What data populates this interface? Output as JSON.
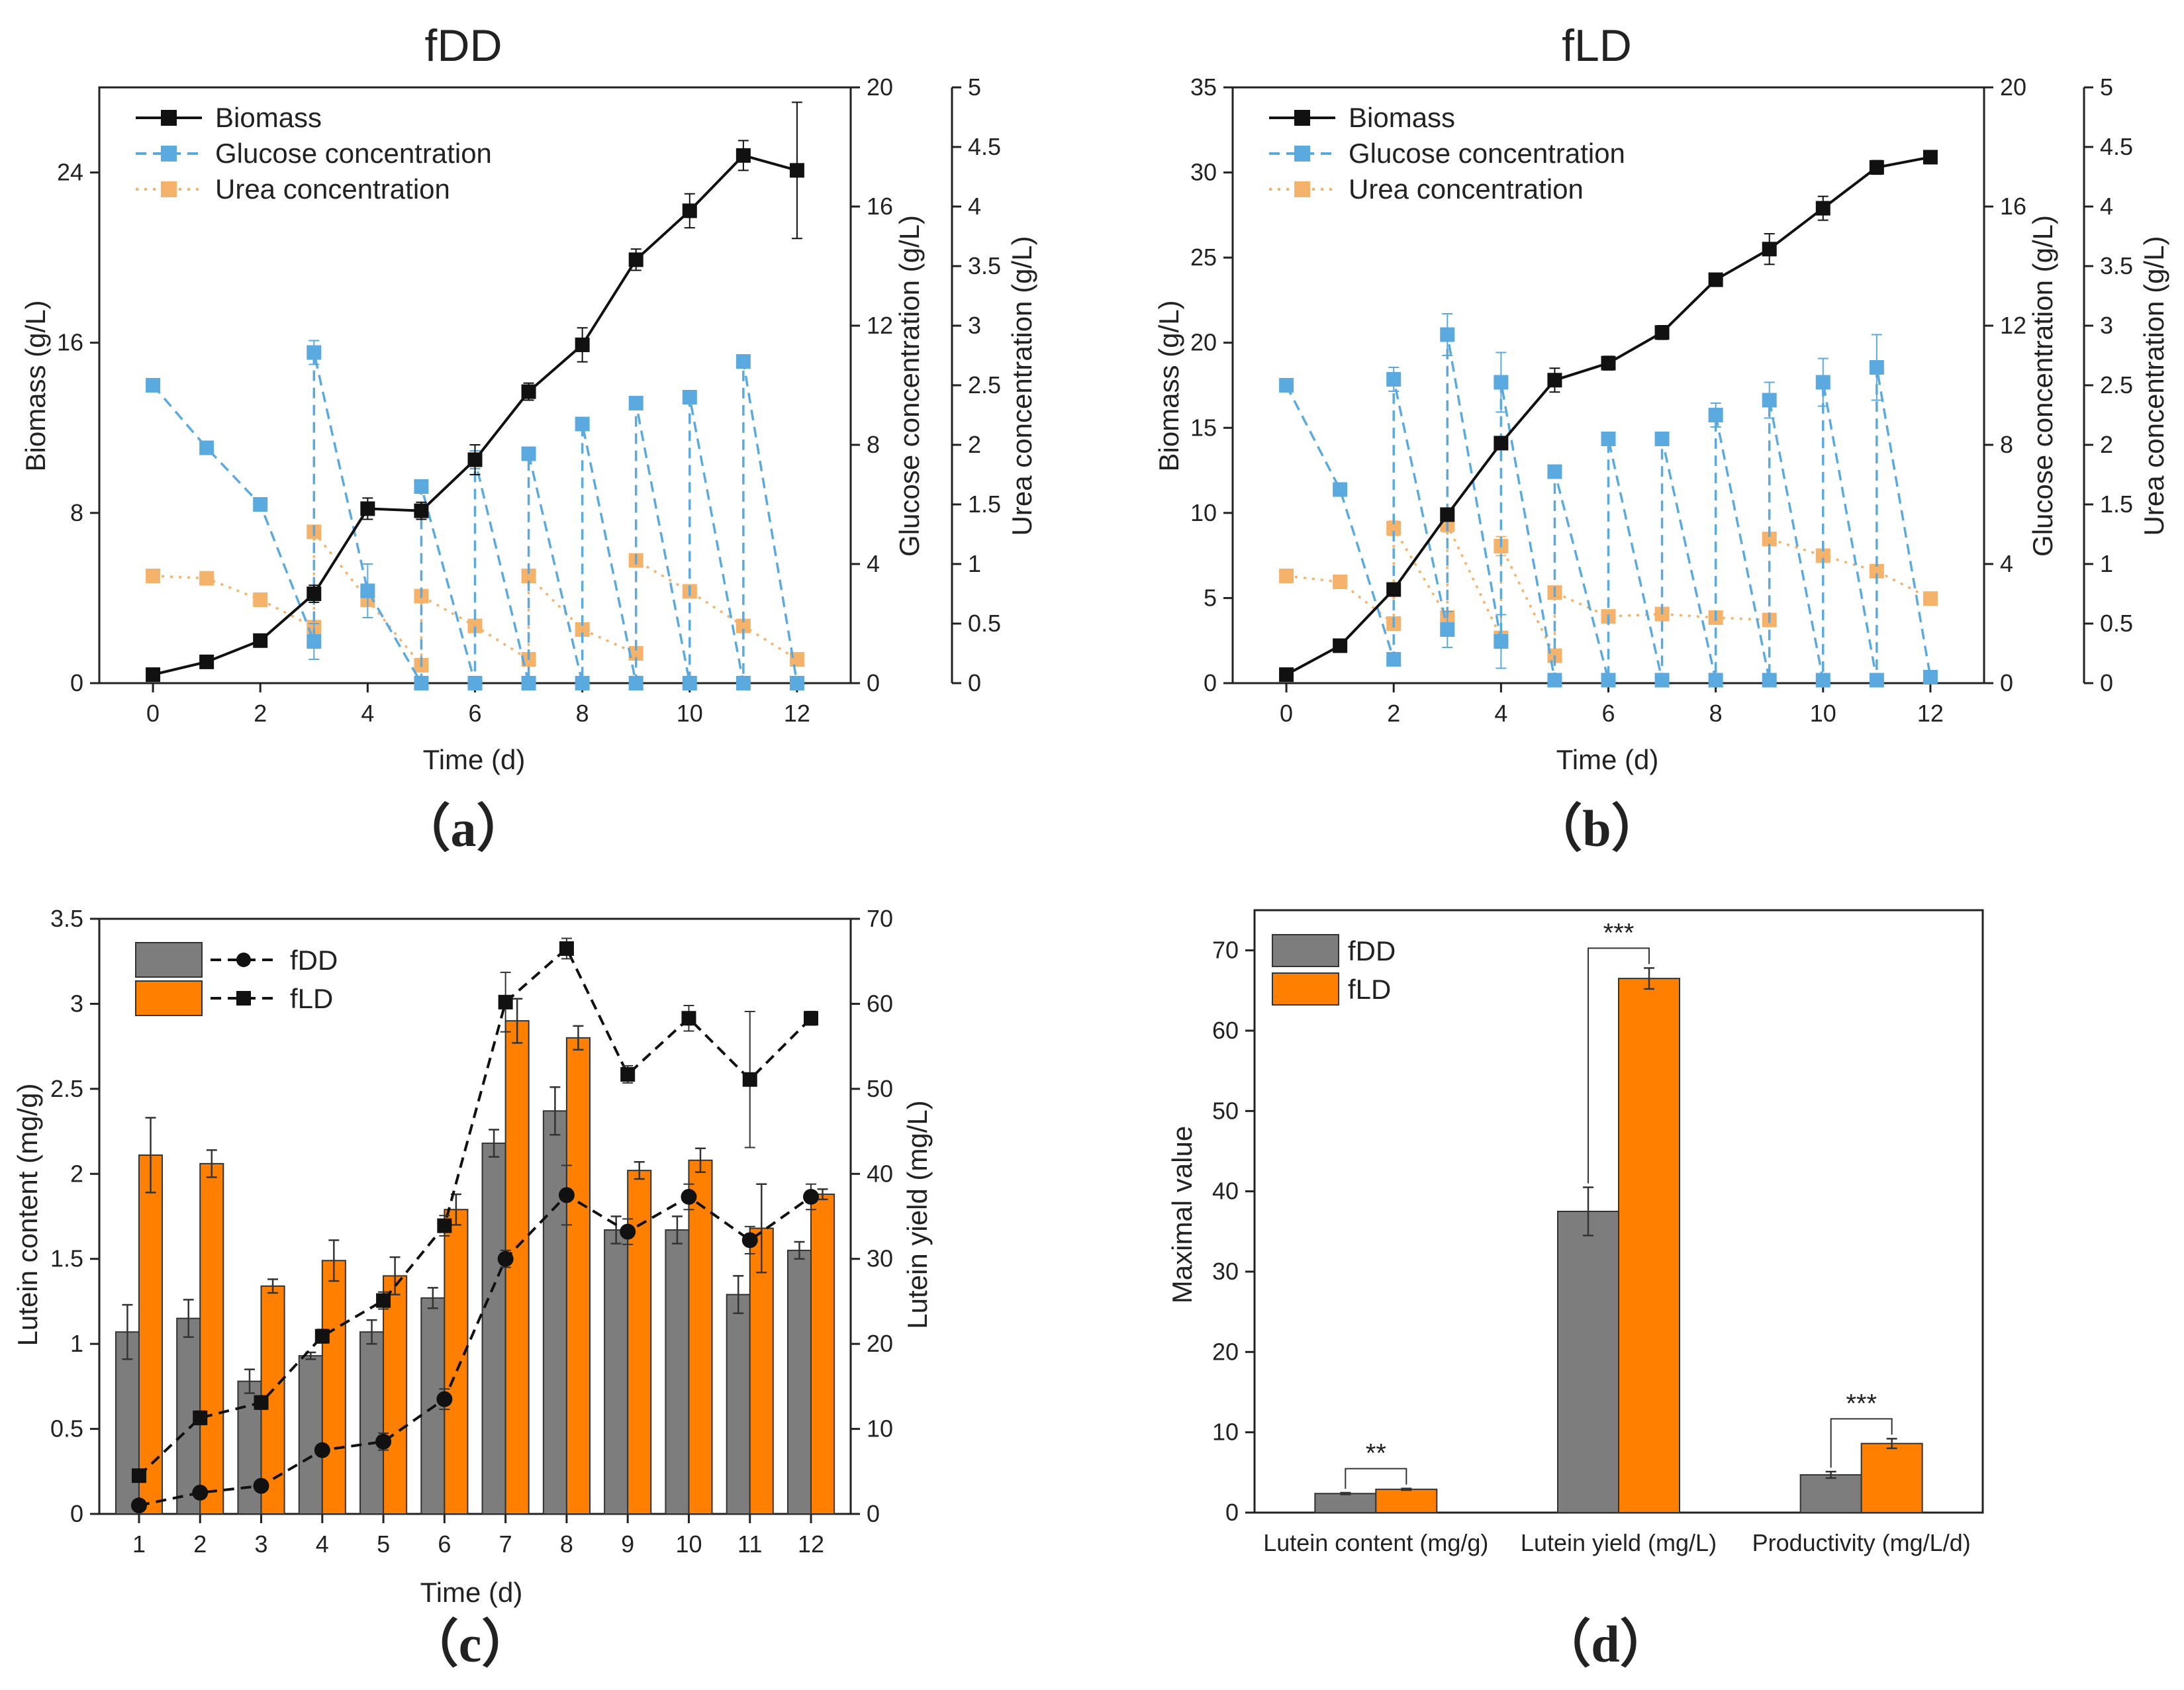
{
  "chart_data": [
    {
      "id": "a",
      "type": "line",
      "title": "fDD",
      "panel_label": "（a）",
      "xlabel": "Time (d)",
      "ylabel": "Biomass (g/L)",
      "y2label": "Glucose concentration (g/L)",
      "y3label": "Urea concentration (g/L)",
      "xlim": [
        -1,
        13
      ],
      "xticks": [
        0,
        2,
        4,
        6,
        8,
        10,
        12
      ],
      "ylim": [
        0,
        28
      ],
      "yticks": [
        0,
        8,
        16,
        24
      ],
      "y2lim": [
        0,
        20
      ],
      "y2ticks": [
        0,
        4,
        8,
        12,
        16,
        20
      ],
      "y3lim": [
        0,
        5
      ],
      "y3ticks": [
        "0",
        "0.5",
        "1",
        "1.5",
        "2",
        "2.5",
        "3",
        "3.5",
        "4",
        "4.5",
        "5"
      ],
      "series": [
        {
          "name": "Biomass",
          "axis": "y",
          "color": "#111111",
          "dash": "solid",
          "x": [
            0,
            1,
            2,
            3,
            4,
            5,
            6,
            7,
            8,
            9,
            10,
            11,
            12
          ],
          "y": [
            0.4,
            1.0,
            2.0,
            4.2,
            8.2,
            8.1,
            10.5,
            13.7,
            15.9,
            19.9,
            22.2,
            24.8,
            24.1
          ],
          "err": [
            0.1,
            0.1,
            0.2,
            0.4,
            0.5,
            0.4,
            0.7,
            0.4,
            0.8,
            0.5,
            0.8,
            0.7,
            3.2
          ]
        },
        {
          "name": "Glucose concentration",
          "axis": "y2",
          "color": "#5aaae0",
          "dash": "dashed",
          "x": [
            0,
            1,
            2,
            3,
            3,
            4,
            5,
            5,
            6,
            6,
            7,
            7,
            8,
            8,
            9,
            9,
            10,
            10,
            11,
            11,
            12
          ],
          "y": [
            10.0,
            7.9,
            6.0,
            1.4,
            11.1,
            3.1,
            0.0,
            6.6,
            0.0,
            7.5,
            0.0,
            7.7,
            0.0,
            8.7,
            0.0,
            9.4,
            0.0,
            9.6,
            0.0,
            10.8,
            0.0
          ],
          "err": [
            0.1,
            0.1,
            0.1,
            0.6,
            0.4,
            0.9,
            0.1,
            0.2,
            0.1,
            0.3,
            0.1,
            0.2,
            0.1,
            0.2,
            0.1,
            0.2,
            0.1,
            0.1,
            0.1,
            0.2,
            0.1
          ]
        },
        {
          "name": "Urea concentration",
          "axis": "y3",
          "color": "#f5b26a",
          "dash": "dotted",
          "x": [
            0,
            1,
            2,
            3,
            3,
            4,
            5,
            5,
            6,
            7,
            7,
            8,
            9,
            9,
            10,
            11,
            12
          ],
          "y": [
            0.9,
            0.88,
            0.7,
            0.47,
            1.27,
            0.7,
            0.15,
            0.73,
            0.48,
            0.2,
            0.9,
            0.45,
            0.25,
            1.03,
            0.77,
            0.48,
            0.2
          ],
          "err": [
            0.02,
            0.02,
            0.03,
            0.04,
            0.05,
            0.04,
            0.03,
            0.04,
            0.03,
            0.03,
            0.04,
            0.03,
            0.03,
            0.04,
            0.03,
            0.03,
            0.02
          ]
        }
      ]
    },
    {
      "id": "b",
      "type": "line",
      "title": "fLD",
      "panel_label": "（b）",
      "xlabel": "Time (d)",
      "ylabel": "Biomass (g/L)",
      "y2label": "Glucose concentration (g/L)",
      "y3label": "Urea concentration (g/L)",
      "xlim": [
        -1,
        13
      ],
      "xticks": [
        0,
        2,
        4,
        6,
        8,
        10,
        12
      ],
      "ylim": [
        0,
        35
      ],
      "yticks": [
        0,
        5,
        10,
        15,
        20,
        25,
        30,
        35
      ],
      "y2lim": [
        0,
        20
      ],
      "y2ticks": [
        0,
        4,
        8,
        12,
        16,
        20
      ],
      "y3lim": [
        0,
        5
      ],
      "y3ticks": [
        "0",
        "0.5",
        "1",
        "1.5",
        "2",
        "2.5",
        "3",
        "3.5",
        "4",
        "4.5",
        "5"
      ],
      "series": [
        {
          "name": "Biomass",
          "axis": "y",
          "color": "#111111",
          "dash": "solid",
          "x": [
            0,
            1,
            2,
            3,
            4,
            5,
            6,
            7,
            8,
            9,
            10,
            11,
            12
          ],
          "y": [
            0.5,
            2.2,
            5.5,
            9.9,
            14.1,
            17.8,
            18.8,
            20.6,
            23.7,
            25.5,
            27.9,
            30.3,
            30.9
          ],
          "err": [
            0.1,
            0.2,
            0.3,
            0.3,
            0.3,
            0.7,
            0.4,
            0.4,
            0.3,
            0.9,
            0.7,
            0.4,
            0.3
          ]
        },
        {
          "name": "Glucose concentration",
          "axis": "y2",
          "color": "#5aaae0",
          "dash": "dashed",
          "x": [
            0,
            1,
            2,
            2,
            3,
            3,
            4,
            4,
            5,
            5,
            6,
            6,
            7,
            7,
            8,
            8,
            9,
            9,
            10,
            10,
            11,
            11,
            12
          ],
          "y": [
            10.0,
            6.5,
            0.8,
            10.2,
            1.8,
            11.7,
            1.4,
            10.1,
            0.1,
            7.1,
            0.1,
            8.2,
            0.1,
            8.2,
            0.1,
            9.0,
            0.1,
            9.5,
            0.1,
            10.1,
            0.1,
            10.6,
            0.2
          ],
          "err": [
            0.1,
            0.2,
            0.2,
            0.4,
            0.6,
            0.7,
            0.9,
            1.0,
            0.1,
            0.2,
            0.1,
            0.2,
            0.1,
            0.2,
            0.1,
            0.4,
            0.1,
            0.6,
            0.1,
            0.8,
            0.1,
            1.1,
            0.1
          ]
        },
        {
          "name": "Urea concentration",
          "axis": "y3",
          "color": "#f5b26a",
          "dash": "dotted",
          "x": [
            0,
            1,
            2,
            2,
            3,
            3,
            4,
            4,
            5,
            5,
            6,
            7,
            8,
            9,
            9,
            10,
            11,
            12
          ],
          "y": [
            0.9,
            0.85,
            0.5,
            1.3,
            0.55,
            1.33,
            0.38,
            1.15,
            0.23,
            0.76,
            0.56,
            0.58,
            0.55,
            0.53,
            1.21,
            1.07,
            0.94,
            0.71
          ],
          "err": [
            0.02,
            0.02,
            0.04,
            0.06,
            0.05,
            0.06,
            0.05,
            0.08,
            0.03,
            0.04,
            0.03,
            0.03,
            0.03,
            0.03,
            0.05,
            0.05,
            0.05,
            0.05
          ]
        }
      ]
    },
    {
      "id": "c",
      "type": "bar",
      "panel_label": "（c）",
      "xlabel": "Time (d)",
      "ylabel": "Lutein content (mg/g)",
      "y2label": "Lutein yield (mg/L)",
      "categories": [
        "1",
        "2",
        "3",
        "4",
        "5",
        "6",
        "7",
        "8",
        "9",
        "10",
        "11",
        "12"
      ],
      "ylim": [
        0,
        3.5
      ],
      "yticks": [
        "0",
        "0.5",
        "1",
        "1.5",
        "2",
        "2.5",
        "3",
        "3.5"
      ],
      "y2lim": [
        0,
        70
      ],
      "y2ticks": [
        0,
        10,
        20,
        30,
        40,
        50,
        60,
        70
      ],
      "series": [
        {
          "name": "fDD",
          "color": "#7d7d7d",
          "values": [
            1.07,
            1.15,
            0.78,
            0.93,
            1.07,
            1.27,
            2.18,
            2.37,
            1.67,
            1.67,
            1.29,
            1.55
          ],
          "err": [
            0.16,
            0.11,
            0.07,
            0.02,
            0.07,
            0.06,
            0.08,
            0.14,
            0.08,
            0.08,
            0.11,
            0.05
          ],
          "yield": [
            1.0,
            2.5,
            3.3,
            7.5,
            8.5,
            13.5,
            30.0,
            37.5,
            33.2,
            37.3,
            32.2,
            37.3
          ],
          "yield_err": [
            0.5,
            0.5,
            0.5,
            0.5,
            1.0,
            1.2,
            1.0,
            3.5,
            1.5,
            1.5,
            1.6,
            1.5
          ]
        },
        {
          "name": "fLD",
          "color": "#ff8000",
          "values": [
            2.11,
            2.06,
            1.34,
            1.49,
            1.4,
            1.79,
            2.9,
            2.8,
            2.02,
            2.08,
            1.68,
            1.88
          ],
          "err": [
            0.22,
            0.08,
            0.04,
            0.12,
            0.11,
            0.09,
            0.13,
            0.07,
            0.05,
            0.07,
            0.26,
            0.03
          ],
          "yield": [
            4.5,
            11.3,
            13.1,
            20.9,
            25.1,
            33.9,
            60.2,
            66.5,
            51.7,
            58.3,
            51.1,
            58.3
          ],
          "yield_err": [
            0.5,
            0.8,
            0.8,
            0.8,
            1.0,
            1.2,
            3.5,
            1.2,
            1.0,
            1.5,
            8.0,
            0.8
          ]
        }
      ]
    },
    {
      "id": "d",
      "type": "bar",
      "panel_label": "（d）",
      "ylabel": "Maximal value",
      "categories": [
        "Lutein content (mg/g)",
        "Lutein yield (mg/L)",
        "Productivity (mg/L/d)"
      ],
      "ylim": [
        0,
        75
      ],
      "yticks": [
        0,
        10,
        20,
        30,
        40,
        50,
        60,
        70
      ],
      "significance": [
        "**",
        "***",
        "***"
      ],
      "series": [
        {
          "name": "fDD",
          "color": "#7d7d7d",
          "values": [
            2.37,
            37.5,
            4.7
          ],
          "err": [
            0.1,
            3.0,
            0.4
          ]
        },
        {
          "name": "fLD",
          "color": "#ff8000",
          "values": [
            2.9,
            66.5,
            8.6
          ],
          "err": [
            0.1,
            1.3,
            0.6
          ]
        }
      ]
    }
  ]
}
